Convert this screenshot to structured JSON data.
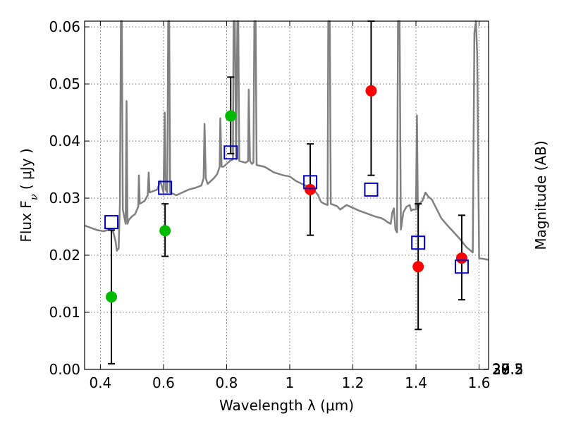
{
  "chart_data": {
    "type": "scatter",
    "xlabel": "Wavelength  λ (μm)",
    "ylabel": "Flux  F",
    "ylabel_sub": "ν",
    "ylabel_unit": "(  μJy  )",
    "y2label": "Magnitude (AB)",
    "xlim": [
      0.35,
      1.63
    ],
    "ylim": [
      0.0,
      0.061
    ],
    "grid": true,
    "x_ticks": [
      {
        "v": 0.4,
        "label": "0.4"
      },
      {
        "v": 0.6,
        "label": "0.6"
      },
      {
        "v": 0.8,
        "label": "0.8"
      },
      {
        "v": 1.0,
        "label": "1"
      },
      {
        "v": 1.2,
        "label": "1.2"
      },
      {
        "v": 1.4,
        "label": "1.4"
      },
      {
        "v": 1.6,
        "label": "1.6"
      }
    ],
    "y_ticks": [
      {
        "v": 0.0,
        "label": "0.00"
      },
      {
        "v": 0.01,
        "label": "0.01"
      },
      {
        "v": 0.02,
        "label": "0.02"
      },
      {
        "v": 0.03,
        "label": "0.03"
      },
      {
        "v": 0.04,
        "label": "0.04"
      },
      {
        "v": 0.05,
        "label": "0.05"
      },
      {
        "v": 0.06,
        "label": "0.06"
      }
    ],
    "y2_ticks": [
      {
        "mag": 27,
        "label": "27"
      },
      {
        "mag": 27.2,
        "label": "27.2"
      },
      {
        "mag": 27.5,
        "label": "27.5"
      },
      {
        "mag": 28,
        "label": "28"
      },
      {
        "mag": 28.5,
        "label": "28.5"
      },
      {
        "mag": 29,
        "label": "29"
      },
      {
        "mag": 30,
        "label": "30"
      }
    ],
    "colors": {
      "spectrum": "#808080",
      "detection": "#ff0000",
      "upper_limit": "#00bb00",
      "model": "#0000cc",
      "errorbar": "#000000",
      "grid": "#555555"
    },
    "series": [
      {
        "kind": "spectrum",
        "points": [
          [
            0.35,
            0.0252
          ],
          [
            0.37,
            0.0248
          ],
          [
            0.39,
            0.0244
          ],
          [
            0.41,
            0.0242
          ],
          [
            0.43,
            0.0245
          ],
          [
            0.44,
            0.0242
          ],
          [
            0.448,
            0.0225
          ],
          [
            0.452,
            0.0208
          ],
          [
            0.458,
            0.0212
          ],
          [
            0.462,
            0.029
          ],
          [
            0.465,
            0.061
          ],
          [
            0.468,
            0.061
          ],
          [
            0.471,
            0.028
          ],
          [
            0.48,
            0.0255
          ],
          [
            0.483,
            0.047
          ],
          [
            0.486,
            0.0255
          ],
          [
            0.49,
            0.0262
          ],
          [
            0.5,
            0.0268
          ],
          [
            0.51,
            0.0272
          ],
          [
            0.52,
            0.0285
          ],
          [
            0.522,
            0.034
          ],
          [
            0.525,
            0.029
          ],
          [
            0.54,
            0.0295
          ],
          [
            0.55,
            0.0305
          ],
          [
            0.553,
            0.0345
          ],
          [
            0.556,
            0.031
          ],
          [
            0.58,
            0.0315
          ],
          [
            0.59,
            0.033
          ],
          [
            0.6,
            0.031
          ],
          [
            0.604,
            0.045
          ],
          [
            0.607,
            0.0315
          ],
          [
            0.612,
            0.031
          ],
          [
            0.615,
            0.061
          ],
          [
            0.618,
            0.061
          ],
          [
            0.621,
            0.031
          ],
          [
            0.64,
            0.0305
          ],
          [
            0.66,
            0.031
          ],
          [
            0.68,
            0.0315
          ],
          [
            0.7,
            0.0318
          ],
          [
            0.72,
            0.0322
          ],
          [
            0.727,
            0.0335
          ],
          [
            0.73,
            0.043
          ],
          [
            0.734,
            0.0335
          ],
          [
            0.74,
            0.0325
          ],
          [
            0.76,
            0.0335
          ],
          [
            0.77,
            0.0342
          ],
          [
            0.778,
            0.0355
          ],
          [
            0.78,
            0.044
          ],
          [
            0.784,
            0.0355
          ],
          [
            0.79,
            0.0355
          ],
          [
            0.8,
            0.036
          ],
          [
            0.81,
            0.0365
          ],
          [
            0.82,
            0.0368
          ],
          [
            0.822,
            0.061
          ],
          [
            0.826,
            0.061
          ],
          [
            0.83,
            0.0368
          ],
          [
            0.834,
            0.061
          ],
          [
            0.837,
            0.061
          ],
          [
            0.84,
            0.0365
          ],
          [
            0.86,
            0.0362
          ],
          [
            0.868,
            0.0365
          ],
          [
            0.87,
            0.049
          ],
          [
            0.874,
            0.0365
          ],
          [
            0.88,
            0.036
          ],
          [
            0.885,
            0.0362
          ],
          [
            0.888,
            0.061
          ],
          [
            0.892,
            0.061
          ],
          [
            0.895,
            0.0358
          ],
          [
            0.92,
            0.0355
          ],
          [
            0.95,
            0.0345
          ],
          [
            0.98,
            0.034
          ],
          [
            1.0,
            0.0338
          ],
          [
            1.02,
            0.033
          ],
          [
            1.05,
            0.0322
          ],
          [
            1.07,
            0.032
          ],
          [
            1.08,
            0.0312
          ],
          [
            1.09,
            0.0305
          ],
          [
            1.095,
            0.0298
          ],
          [
            1.1,
            0.0293
          ],
          [
            1.11,
            0.029
          ],
          [
            1.12,
            0.0288
          ],
          [
            1.122,
            0.061
          ],
          [
            1.127,
            0.061
          ],
          [
            1.13,
            0.029
          ],
          [
            1.15,
            0.0286
          ],
          [
            1.16,
            0.028
          ],
          [
            1.18,
            0.0288
          ],
          [
            1.2,
            0.0283
          ],
          [
            1.22,
            0.0278
          ],
          [
            1.25,
            0.0272
          ],
          [
            1.27,
            0.0268
          ],
          [
            1.29,
            0.0265
          ],
          [
            1.3,
            0.0262
          ],
          [
            1.31,
            0.0258
          ],
          [
            1.32,
            0.0255
          ],
          [
            1.325,
            0.0275
          ],
          [
            1.33,
            0.0282
          ],
          [
            1.335,
            0.0245
          ],
          [
            1.34,
            0.024
          ],
          [
            1.343,
            0.061
          ],
          [
            1.348,
            0.061
          ],
          [
            1.352,
            0.0245
          ],
          [
            1.36,
            0.0275
          ],
          [
            1.37,
            0.0285
          ],
          [
            1.38,
            0.0288
          ],
          [
            1.385,
            0.0278
          ],
          [
            1.39,
            0.028
          ],
          [
            1.4,
            0.028
          ],
          [
            1.403,
            0.0445
          ],
          [
            1.406,
            0.028
          ],
          [
            1.41,
            0.029
          ],
          [
            1.42,
            0.0295
          ],
          [
            1.43,
            0.031
          ],
          [
            1.44,
            0.0302
          ],
          [
            1.45,
            0.0298
          ],
          [
            1.48,
            0.0265
          ],
          [
            1.5,
            0.0252
          ],
          [
            1.52,
            0.024
          ],
          [
            1.54,
            0.0228
          ],
          [
            1.56,
            0.0214
          ],
          [
            1.58,
            0.0205
          ],
          [
            1.585,
            0.059
          ],
          [
            1.59,
            0.061
          ],
          [
            1.594,
            0.055
          ],
          [
            1.6,
            0.0195
          ],
          [
            1.63,
            0.0192
          ]
        ]
      },
      {
        "kind": "detection",
        "points": [
          {
            "x": 1.065,
            "y": 0.0315,
            "err": [
              0.0235,
              0.0395
            ]
          },
          {
            "x": 1.258,
            "y": 0.0488,
            "err": [
              0.034,
              0.061
            ]
          },
          {
            "x": 1.407,
            "y": 0.018,
            "err": [
              0.007,
              0.029
            ]
          },
          {
            "x": 1.545,
            "y": 0.0195,
            "err": [
              0.0122,
              0.027
            ]
          }
        ]
      },
      {
        "kind": "upper_limit",
        "points": [
          {
            "x": 0.435,
            "y": 0.0127,
            "err": [
              0.001,
              0.0244
            ]
          },
          {
            "x": 0.605,
            "y": 0.0243,
            "err": [
              0.0198,
              0.029
            ]
          },
          {
            "x": 0.813,
            "y": 0.0444,
            "err": [
              0.0378,
              0.0512
            ]
          }
        ]
      },
      {
        "kind": "model",
        "points": [
          {
            "x": 0.435,
            "y": 0.0258
          },
          {
            "x": 0.605,
            "y": 0.0318
          },
          {
            "x": 0.813,
            "y": 0.038
          },
          {
            "x": 1.065,
            "y": 0.0328
          },
          {
            "x": 1.258,
            "y": 0.0315
          },
          {
            "x": 1.407,
            "y": 0.0222
          },
          {
            "x": 1.545,
            "y": 0.018
          }
        ]
      }
    ]
  }
}
